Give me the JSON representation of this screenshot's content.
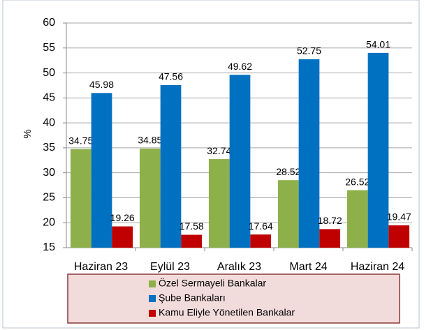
{
  "chart_data": {
    "type": "bar",
    "ylabel": "%",
    "categories": [
      "Haziran 23",
      "Eylül 23",
      "Aralık 23",
      "Mart 24",
      "Haziran 24"
    ],
    "series": [
      {
        "name": "Özel Sermayeli Bankalar",
        "color": "#8db04a",
        "values": [
          34.75,
          34.85,
          32.74,
          28.52,
          26.52
        ]
      },
      {
        "name": "Şube Bankaları",
        "color": "#0070c0",
        "values": [
          45.98,
          47.56,
          49.62,
          52.75,
          54.01
        ]
      },
      {
        "name": "Kamu Eliyle Yönetilen Bankalar",
        "color": "#c00000",
        "values": [
          19.26,
          17.58,
          17.64,
          18.72,
          19.47
        ]
      }
    ],
    "ylim": [
      15,
      60
    ],
    "yticks": [
      15,
      20,
      25,
      30,
      35,
      40,
      45,
      50,
      55,
      60
    ],
    "grid": true
  }
}
